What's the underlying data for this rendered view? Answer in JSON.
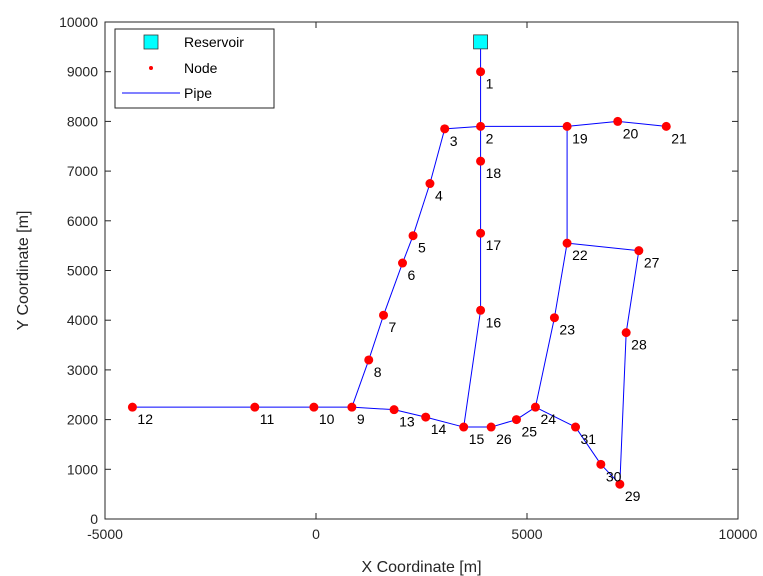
{
  "chart_data": {
    "type": "scatter",
    "title": "",
    "xlabel": "X Coordinate [m]",
    "ylabel": "Y Coordinate [m]",
    "xlim": [
      -5000,
      10000
    ],
    "ylim": [
      0,
      10000
    ],
    "xticks": [
      -5000,
      0,
      5000,
      10000
    ],
    "xtick_labels": [
      "-5000",
      "0",
      "5000",
      "10000"
    ],
    "yticks": [
      0,
      1000,
      2000,
      3000,
      4000,
      5000,
      6000,
      7000,
      8000,
      9000,
      10000
    ],
    "ytick_labels": [
      "0",
      "1000",
      "2000",
      "3000",
      "4000",
      "5000",
      "6000",
      "7000",
      "8000",
      "9000",
      "10000"
    ],
    "grid": false,
    "legend_position": "top-left",
    "legend": [
      {
        "label": "Reservoir",
        "marker": "square"
      },
      {
        "label": "Node",
        "marker": "dot"
      },
      {
        "label": "Pipe",
        "marker": "line"
      }
    ],
    "colors": {
      "reservoir_fill": "#00ffff",
      "reservoir_edge": "#3a3a3a",
      "node": "#ff0000",
      "pipe": "#0000ff",
      "axis": "#262626"
    },
    "reservoir": {
      "x": 3900,
      "y": 9600
    },
    "nodes": [
      {
        "label": "1",
        "x": 3900,
        "y": 9000
      },
      {
        "label": "2",
        "x": 3900,
        "y": 7900
      },
      {
        "label": "3",
        "x": 3050,
        "y": 7850
      },
      {
        "label": "4",
        "x": 2700,
        "y": 6750
      },
      {
        "label": "5",
        "x": 2300,
        "y": 5700
      },
      {
        "label": "6",
        "x": 2050,
        "y": 5150
      },
      {
        "label": "7",
        "x": 1600,
        "y": 4100
      },
      {
        "label": "8",
        "x": 1250,
        "y": 3200
      },
      {
        "label": "9",
        "x": 850,
        "y": 2250
      },
      {
        "label": "10",
        "x": -50,
        "y": 2250
      },
      {
        "label": "11",
        "x": -1450,
        "y": 2250
      },
      {
        "label": "12",
        "x": -4350,
        "y": 2250
      },
      {
        "label": "13",
        "x": 1850,
        "y": 2200
      },
      {
        "label": "14",
        "x": 2600,
        "y": 2050
      },
      {
        "label": "15",
        "x": 3500,
        "y": 1850
      },
      {
        "label": "16",
        "x": 3900,
        "y": 4200
      },
      {
        "label": "17",
        "x": 3900,
        "y": 5750
      },
      {
        "label": "18",
        "x": 3900,
        "y": 7200
      },
      {
        "label": "19",
        "x": 5950,
        "y": 7900
      },
      {
        "label": "20",
        "x": 7150,
        "y": 8000
      },
      {
        "label": "21",
        "x": 8300,
        "y": 7900
      },
      {
        "label": "22",
        "x": 5950,
        "y": 5550
      },
      {
        "label": "23",
        "x": 5650,
        "y": 4050
      },
      {
        "label": "24",
        "x": 5200,
        "y": 2250
      },
      {
        "label": "25",
        "x": 4750,
        "y": 2000
      },
      {
        "label": "26",
        "x": 4150,
        "y": 1850
      },
      {
        "label": "27",
        "x": 7650,
        "y": 5400
      },
      {
        "label": "28",
        "x": 7350,
        "y": 3750
      },
      {
        "label": "29",
        "x": 7200,
        "y": 700
      },
      {
        "label": "30",
        "x": 6750,
        "y": 1100
      },
      {
        "label": "31",
        "x": 6150,
        "y": 1850
      }
    ],
    "pipes": [
      [
        "R",
        "1"
      ],
      [
        "1",
        "2"
      ],
      [
        "2",
        "3"
      ],
      [
        "3",
        "4"
      ],
      [
        "4",
        "5"
      ],
      [
        "5",
        "6"
      ],
      [
        "6",
        "7"
      ],
      [
        "7",
        "8"
      ],
      [
        "8",
        "9"
      ],
      [
        "9",
        "10"
      ],
      [
        "10",
        "11"
      ],
      [
        "11",
        "12"
      ],
      [
        "9",
        "13"
      ],
      [
        "13",
        "14"
      ],
      [
        "14",
        "15"
      ],
      [
        "15",
        "16"
      ],
      [
        "16",
        "17"
      ],
      [
        "17",
        "18"
      ],
      [
        "18",
        "2"
      ],
      [
        "2",
        "19"
      ],
      [
        "19",
        "20"
      ],
      [
        "20",
        "21"
      ],
      [
        "19",
        "22"
      ],
      [
        "22",
        "23"
      ],
      [
        "23",
        "24"
      ],
      [
        "24",
        "25"
      ],
      [
        "25",
        "26"
      ],
      [
        "26",
        "15"
      ],
      [
        "22",
        "27"
      ],
      [
        "27",
        "28"
      ],
      [
        "28",
        "29"
      ],
      [
        "29",
        "30"
      ],
      [
        "30",
        "31"
      ],
      [
        "31",
        "24"
      ]
    ]
  }
}
